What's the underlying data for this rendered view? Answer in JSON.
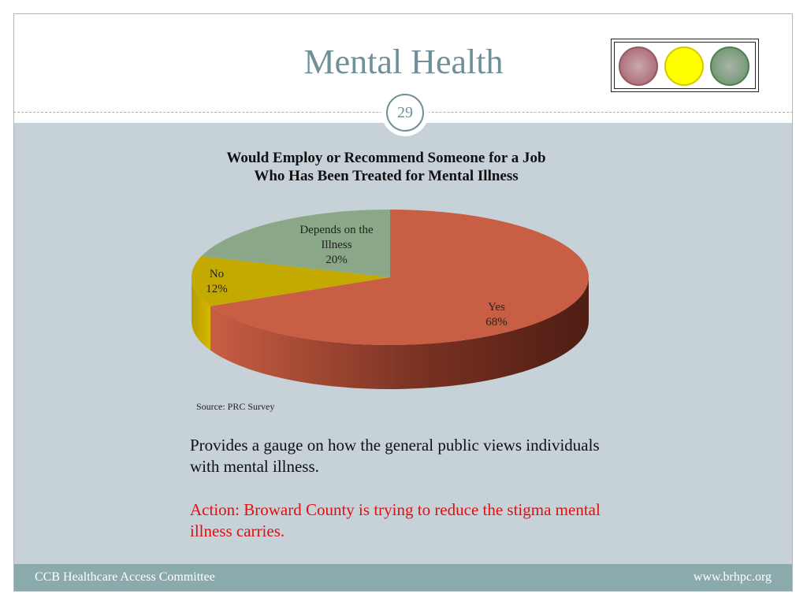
{
  "slide": {
    "title": "Mental Health",
    "page_number": "29",
    "description": "Provides a gauge on how the general public views individuals with mental illness.",
    "action": "Action: Broward County is trying to reduce the stigma mental illness carries.",
    "source": "Source:  PRC Survey"
  },
  "footer": {
    "left": "CCB Healthcare Access Committee",
    "right": "www.brhpc.org"
  },
  "traffic_light": {
    "colors": [
      "#b47a83",
      "#ffff00",
      "#7f9f80"
    ]
  },
  "chart_data": {
    "type": "pie",
    "title_line1": "Would Employ or Recommend Someone for a Job",
    "title_line2": "Who Has Been Treated for Mental  Illness",
    "slices": [
      {
        "label": "Yes",
        "pct_text": "68%",
        "value": 68,
        "color": "#c85e44",
        "side_color": "#8c3a28"
      },
      {
        "label": "No",
        "pct_text": "12%",
        "value": 12,
        "color": "#c4aa00",
        "side_color": "#9e8800"
      },
      {
        "label_line1": "Depends on the",
        "label_line2": "Illness",
        "pct_text": "20%",
        "value": 20,
        "color": "#8aa888",
        "side_color": "#6a8a68"
      }
    ]
  }
}
